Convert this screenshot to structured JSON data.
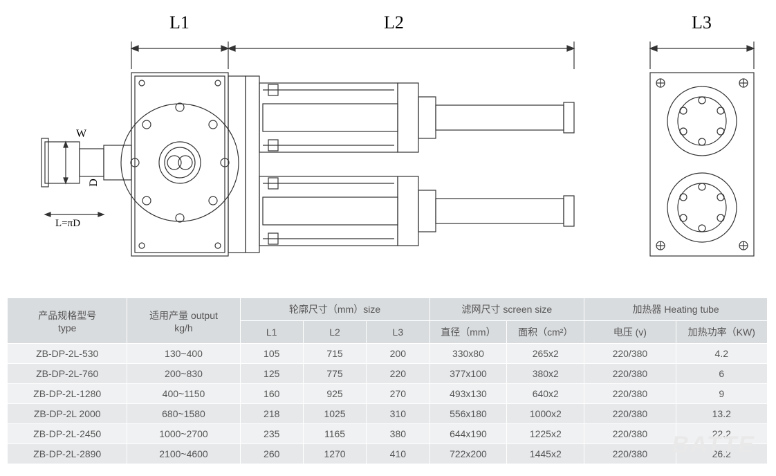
{
  "diagram": {
    "labels": {
      "L1": "L1",
      "L2": "L2",
      "L3": "L3",
      "W": "W",
      "D": "D",
      "LpiD": "L=πD"
    },
    "stroke": "#333333",
    "stroke_width": 1.2
  },
  "table": {
    "header_bg": "#d9dcde",
    "row_bg_odd": "#f0f1f2",
    "row_bg_even": "#e6e8ea",
    "text_color": "#555555",
    "fontsize": 14,
    "headers": {
      "type": "产品规格型号\ntype",
      "output": "适用产量 output\nkg/h",
      "size_group": "轮廓尺寸（mm）size",
      "L1": "L1",
      "L2": "L2",
      "L3": "L3",
      "screen_group": "滤网尺寸 screen size",
      "diameter": "直径（mm）",
      "area": "面积（cm²）",
      "heat_group": "加热器 Heating tube",
      "voltage": "电压 (v)",
      "power": "加热功率（KW)"
    },
    "rows": [
      {
        "type": "ZB-DP-2L-530",
        "output": "130~400",
        "L1": "105",
        "L2": "715",
        "L3": "200",
        "dia": "330x80",
        "area": "265x2",
        "volt": "220/380",
        "kw": "4.2"
      },
      {
        "type": "ZB-DP-2L-760",
        "output": "200~830",
        "L1": "125",
        "L2": "775",
        "L3": "220",
        "dia": "377x100",
        "area": "380x2",
        "volt": "220/380",
        "kw": "6"
      },
      {
        "type": "ZB-DP-2L-1280",
        "output": "400~1150",
        "L1": "160",
        "L2": "925",
        "L3": "270",
        "dia": "493x130",
        "area": "640x2",
        "volt": "220/380",
        "kw": "9"
      },
      {
        "type": "ZB-DP-2L 2000",
        "output": "680~1580",
        "L1": "218",
        "L2": "1025",
        "L3": "310",
        "dia": "556x180",
        "area": "1000x2",
        "volt": "220/380",
        "kw": "13.2"
      },
      {
        "type": "ZB-DP-2L-2450",
        "output": "1000~2700",
        "L1": "235",
        "L2": "1165",
        "L3": "380",
        "dia": "644x190",
        "area": "1225x2",
        "volt": "220/380",
        "kw": "22.2"
      },
      {
        "type": "ZB-DP-2L-2890",
        "output": "2100~4600",
        "L1": "260",
        "L2": "1270",
        "L3": "410",
        "dia": "722x200",
        "area": "1445x2",
        "volt": "220/380",
        "kw": "26.2"
      }
    ]
  },
  "watermark": "BATTE"
}
